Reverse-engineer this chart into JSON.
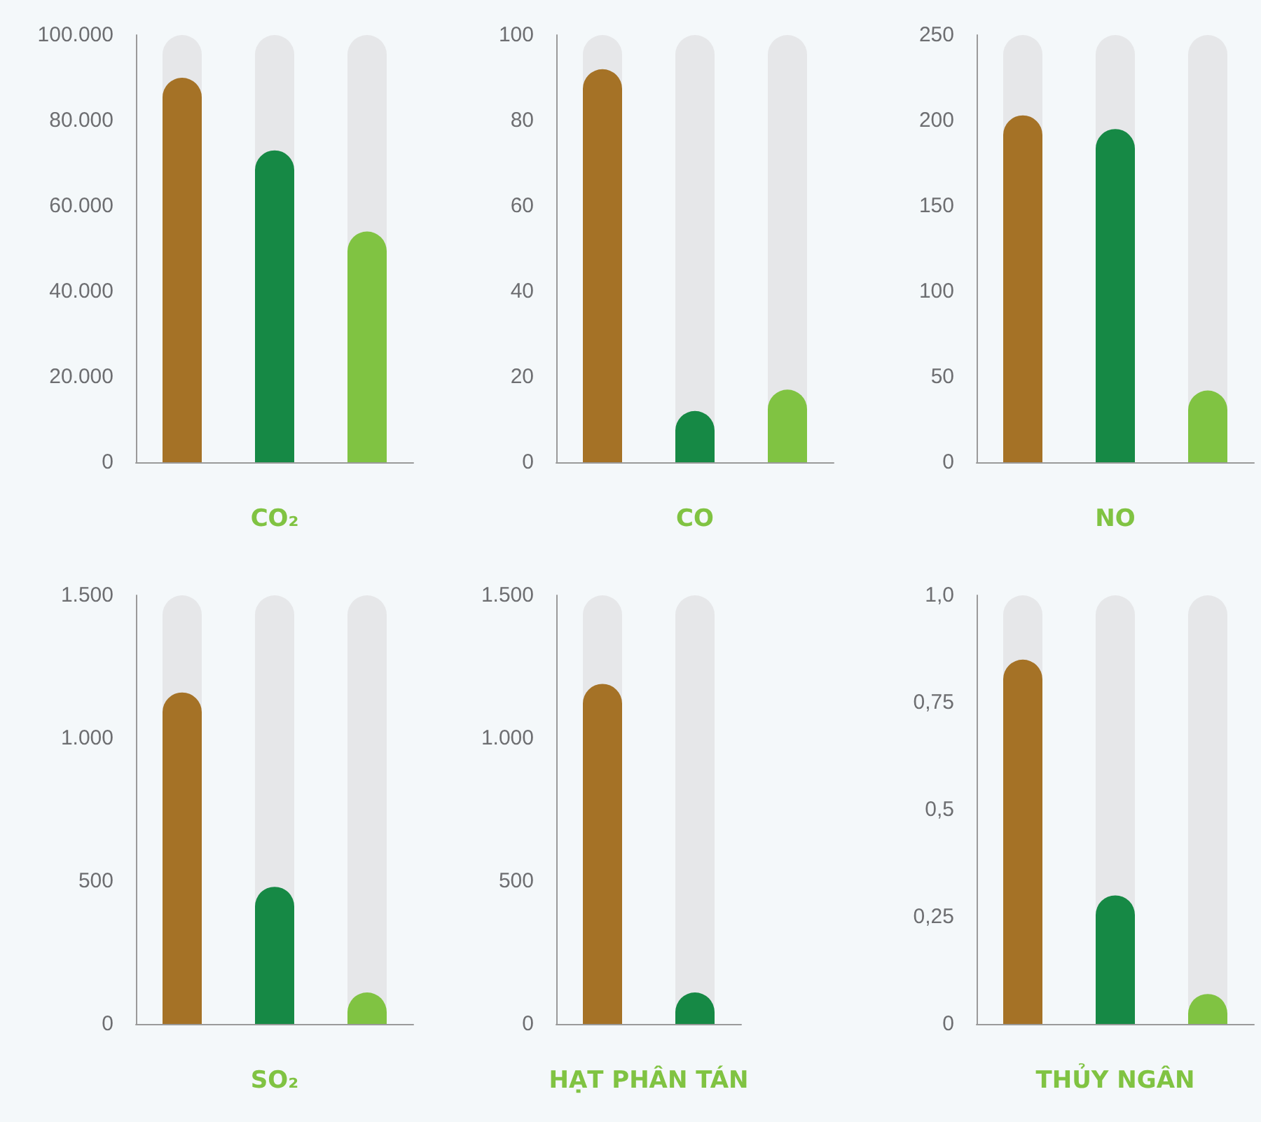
{
  "chart_data": [
    {
      "type": "bar",
      "xlabel": "CO₂",
      "categories": [
        null,
        null,
        null
      ],
      "values": [
        90000,
        73000,
        54000
      ],
      "colors": [
        "#a57226",
        "#168945",
        "#80c342"
      ],
      "ylim": [
        0,
        100000
      ],
      "yticks": [
        0,
        {
          "value": 20000,
          "label": "20.000"
        },
        {
          "value": 40000,
          "label": "40.000"
        },
        {
          "value": 60000,
          "label": "60.000"
        },
        {
          "value": 80000,
          "label": "80.000"
        },
        {
          "value": 100000,
          "label": "100.000"
        }
      ],
      "grid": false,
      "tick_labels": "y"
    },
    {
      "type": "bar",
      "xlabel": "CO",
      "categories": [
        null,
        null,
        null
      ],
      "values": [
        92,
        12,
        17
      ],
      "colors": [
        "#a57226",
        "#168945",
        "#80c342"
      ],
      "ylim": [
        0,
        100
      ],
      "yticks": [
        0,
        20,
        40,
        60,
        80,
        100
      ],
      "grid": false,
      "tick_labels": "y"
    },
    {
      "type": "bar",
      "xlabel": "NO",
      "categories": [
        null,
        null,
        null
      ],
      "values": [
        203,
        195,
        42
      ],
      "colors": [
        "#a57226",
        "#168945",
        "#80c342"
      ],
      "ylim": [
        0,
        250
      ],
      "yticks": [
        0,
        50,
        100,
        150,
        200,
        250
      ],
      "grid": false,
      "tick_labels": "y"
    },
    {
      "type": "bar",
      "xlabel": "SO₂",
      "categories": [
        null,
        null,
        null
      ],
      "values": [
        1160,
        480,
        110
      ],
      "colors": [
        "#a57226",
        "#168945",
        "#80c342"
      ],
      "ylim": [
        0,
        1500
      ],
      "yticks": [
        0,
        500,
        {
          "value": 1000,
          "label": "1.000"
        },
        {
          "value": 1500,
          "label": "1.500"
        }
      ],
      "grid": false,
      "tick_labels": "y"
    },
    {
      "type": "bar",
      "xlabel": "HẠT PHÂN TÁN",
      "categories": [
        null,
        null
      ],
      "values": [
        1190,
        110
      ],
      "colors": [
        "#a57226",
        "#168945"
      ],
      "ylim": [
        0,
        1500
      ],
      "yticks": [
        0,
        500,
        {
          "value": 1000,
          "label": "1.000"
        },
        {
          "value": 1500,
          "label": "1.500"
        }
      ],
      "grid": false,
      "tick_labels": "y"
    },
    {
      "type": "bar",
      "xlabel": "THỦY NGÂN",
      "categories": [
        null,
        null,
        null
      ],
      "values": [
        0.85,
        0.3,
        0.07
      ],
      "colors": [
        "#a57226",
        "#168945",
        "#80c342"
      ],
      "ylim": [
        0,
        1.0
      ],
      "yticks": [
        0,
        {
          "value": 0.25,
          "label": "0,25"
        },
        {
          "value": 0.5,
          "label": "0,5"
        },
        {
          "value": 0.75,
          "label": "0,75"
        },
        {
          "value": 1.0,
          "label": "1,0"
        }
      ],
      "grid": false,
      "tick_labels": "y"
    }
  ]
}
